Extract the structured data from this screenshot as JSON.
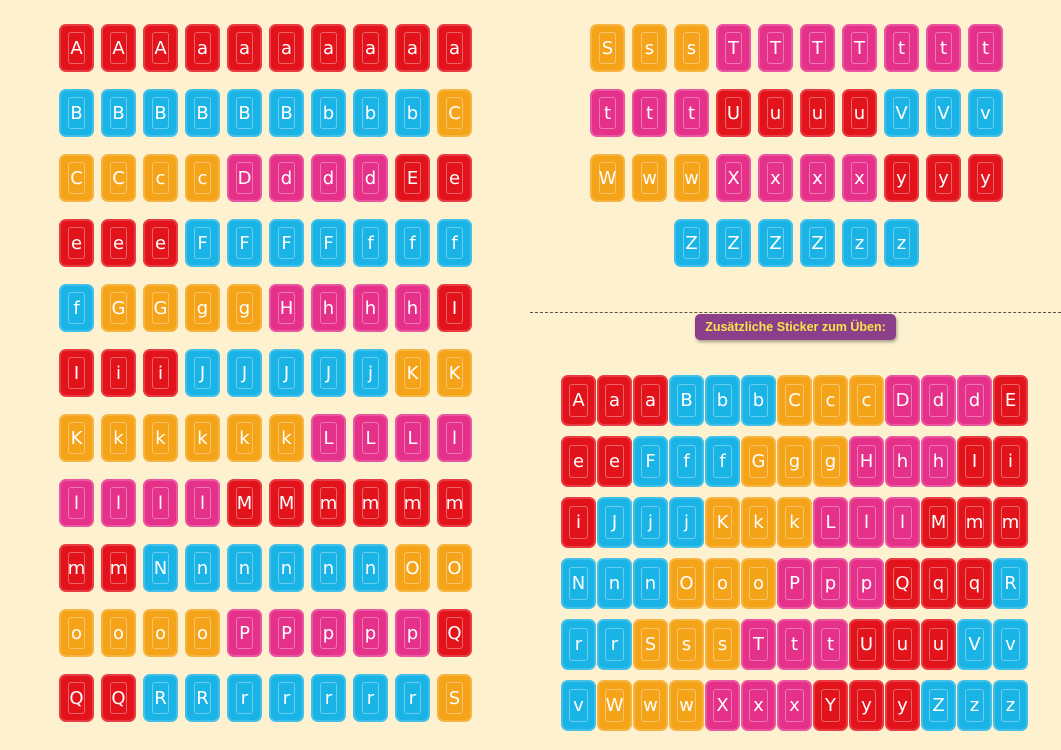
{
  "colors": {
    "r": "#e3131b",
    "b": "#1ab3e6",
    "o": "#f5a41a",
    "p": "#e6318a"
  },
  "extra_label": "Zusätzliche Sticker zum Üben:",
  "left_rows": [
    [
      [
        "A",
        "r"
      ],
      [
        "A",
        "r"
      ],
      [
        "A",
        "r"
      ],
      [
        "a",
        "r"
      ],
      [
        "a",
        "r"
      ],
      [
        "a",
        "r"
      ],
      [
        "a",
        "r"
      ],
      [
        "a",
        "r"
      ],
      [
        "a",
        "r"
      ],
      [
        "a",
        "r"
      ]
    ],
    [
      [
        "B",
        "b"
      ],
      [
        "B",
        "b"
      ],
      [
        "B",
        "b"
      ],
      [
        "B",
        "b"
      ],
      [
        "B",
        "b"
      ],
      [
        "B",
        "b"
      ],
      [
        "b",
        "b"
      ],
      [
        "b",
        "b"
      ],
      [
        "b",
        "b"
      ],
      [
        "C",
        "o"
      ]
    ],
    [
      [
        "C",
        "o"
      ],
      [
        "C",
        "o"
      ],
      [
        "c",
        "o"
      ],
      [
        "c",
        "o"
      ],
      [
        "D",
        "p"
      ],
      [
        "d",
        "p"
      ],
      [
        "d",
        "p"
      ],
      [
        "d",
        "p"
      ],
      [
        "E",
        "r"
      ],
      [
        "e",
        "r"
      ]
    ],
    [
      [
        "e",
        "r"
      ],
      [
        "e",
        "r"
      ],
      [
        "e",
        "r"
      ],
      [
        "F",
        "b"
      ],
      [
        "F",
        "b"
      ],
      [
        "F",
        "b"
      ],
      [
        "F",
        "b"
      ],
      [
        "f",
        "b"
      ],
      [
        "f",
        "b"
      ],
      [
        "f",
        "b"
      ]
    ],
    [
      [
        "f",
        "b"
      ],
      [
        "G",
        "o"
      ],
      [
        "G",
        "o"
      ],
      [
        "g",
        "o"
      ],
      [
        "g",
        "o"
      ],
      [
        "H",
        "p"
      ],
      [
        "h",
        "p"
      ],
      [
        "h",
        "p"
      ],
      [
        "h",
        "p"
      ],
      [
        "I",
        "r"
      ]
    ],
    [
      [
        "I",
        "r"
      ],
      [
        "i",
        "r"
      ],
      [
        "i",
        "r"
      ],
      [
        "J",
        "b"
      ],
      [
        "J",
        "b"
      ],
      [
        "J",
        "b"
      ],
      [
        "J",
        "b"
      ],
      [
        "j",
        "b"
      ],
      [
        "K",
        "o"
      ],
      [
        "K",
        "o"
      ]
    ],
    [
      [
        "K",
        "o"
      ],
      [
        "k",
        "o"
      ],
      [
        "k",
        "o"
      ],
      [
        "k",
        "o"
      ],
      [
        "k",
        "o"
      ],
      [
        "k",
        "o"
      ],
      [
        "L",
        "p"
      ],
      [
        "L",
        "p"
      ],
      [
        "L",
        "p"
      ],
      [
        "l",
        "p"
      ]
    ],
    [
      [
        "l",
        "p"
      ],
      [
        "l",
        "p"
      ],
      [
        "l",
        "p"
      ],
      [
        "l",
        "p"
      ],
      [
        "M",
        "r"
      ],
      [
        "M",
        "r"
      ],
      [
        "m",
        "r"
      ],
      [
        "m",
        "r"
      ],
      [
        "m",
        "r"
      ],
      [
        "m",
        "r"
      ]
    ],
    [
      [
        "m",
        "r"
      ],
      [
        "m",
        "r"
      ],
      [
        "N",
        "b"
      ],
      [
        "n",
        "b"
      ],
      [
        "n",
        "b"
      ],
      [
        "n",
        "b"
      ],
      [
        "n",
        "b"
      ],
      [
        "n",
        "b"
      ],
      [
        "O",
        "o"
      ],
      [
        "O",
        "o"
      ]
    ],
    [
      [
        "o",
        "o"
      ],
      [
        "o",
        "o"
      ],
      [
        "o",
        "o"
      ],
      [
        "o",
        "o"
      ],
      [
        "P",
        "p"
      ],
      [
        "P",
        "p"
      ],
      [
        "p",
        "p"
      ],
      [
        "p",
        "p"
      ],
      [
        "p",
        "p"
      ],
      [
        "Q",
        "r"
      ]
    ],
    [
      [
        "Q",
        "r"
      ],
      [
        "Q",
        "r"
      ],
      [
        "R",
        "b"
      ],
      [
        "R",
        "b"
      ],
      [
        "r",
        "b"
      ],
      [
        "r",
        "b"
      ],
      [
        "r",
        "b"
      ],
      [
        "r",
        "b"
      ],
      [
        "r",
        "b"
      ],
      [
        "S",
        "o"
      ]
    ]
  ],
  "top_right_rows": [
    [
      [
        "S",
        "o"
      ],
      [
        "s",
        "o"
      ],
      [
        "s",
        "o"
      ],
      [
        "T",
        "p"
      ],
      [
        "T",
        "p"
      ],
      [
        "T",
        "p"
      ],
      [
        "T",
        "p"
      ],
      [
        "t",
        "p"
      ],
      [
        "t",
        "p"
      ],
      [
        "t",
        "p"
      ]
    ],
    [
      [
        "t",
        "p"
      ],
      [
        "t",
        "p"
      ],
      [
        "t",
        "p"
      ],
      [
        "U",
        "r"
      ],
      [
        "u",
        "r"
      ],
      [
        "u",
        "r"
      ],
      [
        "u",
        "r"
      ],
      [
        "V",
        "b"
      ],
      [
        "V",
        "b"
      ],
      [
        "v",
        "b"
      ]
    ],
    [
      [
        "W",
        "o"
      ],
      [
        "w",
        "o"
      ],
      [
        "w",
        "o"
      ],
      [
        "X",
        "p"
      ],
      [
        "x",
        "p"
      ],
      [
        "x",
        "p"
      ],
      [
        "x",
        "p"
      ],
      [
        "y",
        "r"
      ],
      [
        "y",
        "r"
      ],
      [
        "y",
        "r"
      ]
    ],
    [
      [
        "Z",
        "b"
      ],
      [
        "Z",
        "b"
      ],
      [
        "Z",
        "b"
      ],
      [
        "Z",
        "b"
      ],
      [
        "z",
        "b"
      ],
      [
        "z",
        "b"
      ]
    ]
  ],
  "extra_rows": [
    [
      [
        "A",
        "r"
      ],
      [
        "a",
        "r"
      ],
      [
        "a",
        "r"
      ],
      [
        "B",
        "b"
      ],
      [
        "b",
        "b"
      ],
      [
        "b",
        "b"
      ],
      [
        "C",
        "o"
      ],
      [
        "c",
        "o"
      ],
      [
        "c",
        "o"
      ],
      [
        "D",
        "p"
      ],
      [
        "d",
        "p"
      ],
      [
        "d",
        "p"
      ],
      [
        "E",
        "r"
      ]
    ],
    [
      [
        "e",
        "r"
      ],
      [
        "e",
        "r"
      ],
      [
        "F",
        "b"
      ],
      [
        "f",
        "b"
      ],
      [
        "f",
        "b"
      ],
      [
        "G",
        "o"
      ],
      [
        "g",
        "o"
      ],
      [
        "g",
        "o"
      ],
      [
        "H",
        "p"
      ],
      [
        "h",
        "p"
      ],
      [
        "h",
        "p"
      ],
      [
        "I",
        "r"
      ],
      [
        "i",
        "r"
      ]
    ],
    [
      [
        "i",
        "r"
      ],
      [
        "J",
        "b"
      ],
      [
        "j",
        "b"
      ],
      [
        "j",
        "b"
      ],
      [
        "K",
        "o"
      ],
      [
        "k",
        "o"
      ],
      [
        "k",
        "o"
      ],
      [
        "L",
        "p"
      ],
      [
        "l",
        "p"
      ],
      [
        "l",
        "p"
      ],
      [
        "M",
        "r"
      ],
      [
        "m",
        "r"
      ],
      [
        "m",
        "r"
      ]
    ],
    [
      [
        "N",
        "b"
      ],
      [
        "n",
        "b"
      ],
      [
        "n",
        "b"
      ],
      [
        "O",
        "o"
      ],
      [
        "o",
        "o"
      ],
      [
        "o",
        "o"
      ],
      [
        "P",
        "p"
      ],
      [
        "p",
        "p"
      ],
      [
        "p",
        "p"
      ],
      [
        "Q",
        "r"
      ],
      [
        "q",
        "r"
      ],
      [
        "q",
        "r"
      ],
      [
        "R",
        "b"
      ]
    ],
    [
      [
        "r",
        "b"
      ],
      [
        "r",
        "b"
      ],
      [
        "S",
        "o"
      ],
      [
        "s",
        "o"
      ],
      [
        "s",
        "o"
      ],
      [
        "T",
        "p"
      ],
      [
        "t",
        "p"
      ],
      [
        "t",
        "p"
      ],
      [
        "U",
        "r"
      ],
      [
        "u",
        "r"
      ],
      [
        "u",
        "r"
      ],
      [
        "V",
        "b"
      ],
      [
        "v",
        "b"
      ]
    ],
    [
      [
        "v",
        "b"
      ],
      [
        "W",
        "o"
      ],
      [
        "w",
        "o"
      ],
      [
        "w",
        "o"
      ],
      [
        "X",
        "p"
      ],
      [
        "x",
        "p"
      ],
      [
        "x",
        "p"
      ],
      [
        "Y",
        "r"
      ],
      [
        "y",
        "r"
      ],
      [
        "y",
        "r"
      ],
      [
        "Z",
        "b"
      ],
      [
        "z",
        "b"
      ],
      [
        "z",
        "b"
      ]
    ]
  ]
}
